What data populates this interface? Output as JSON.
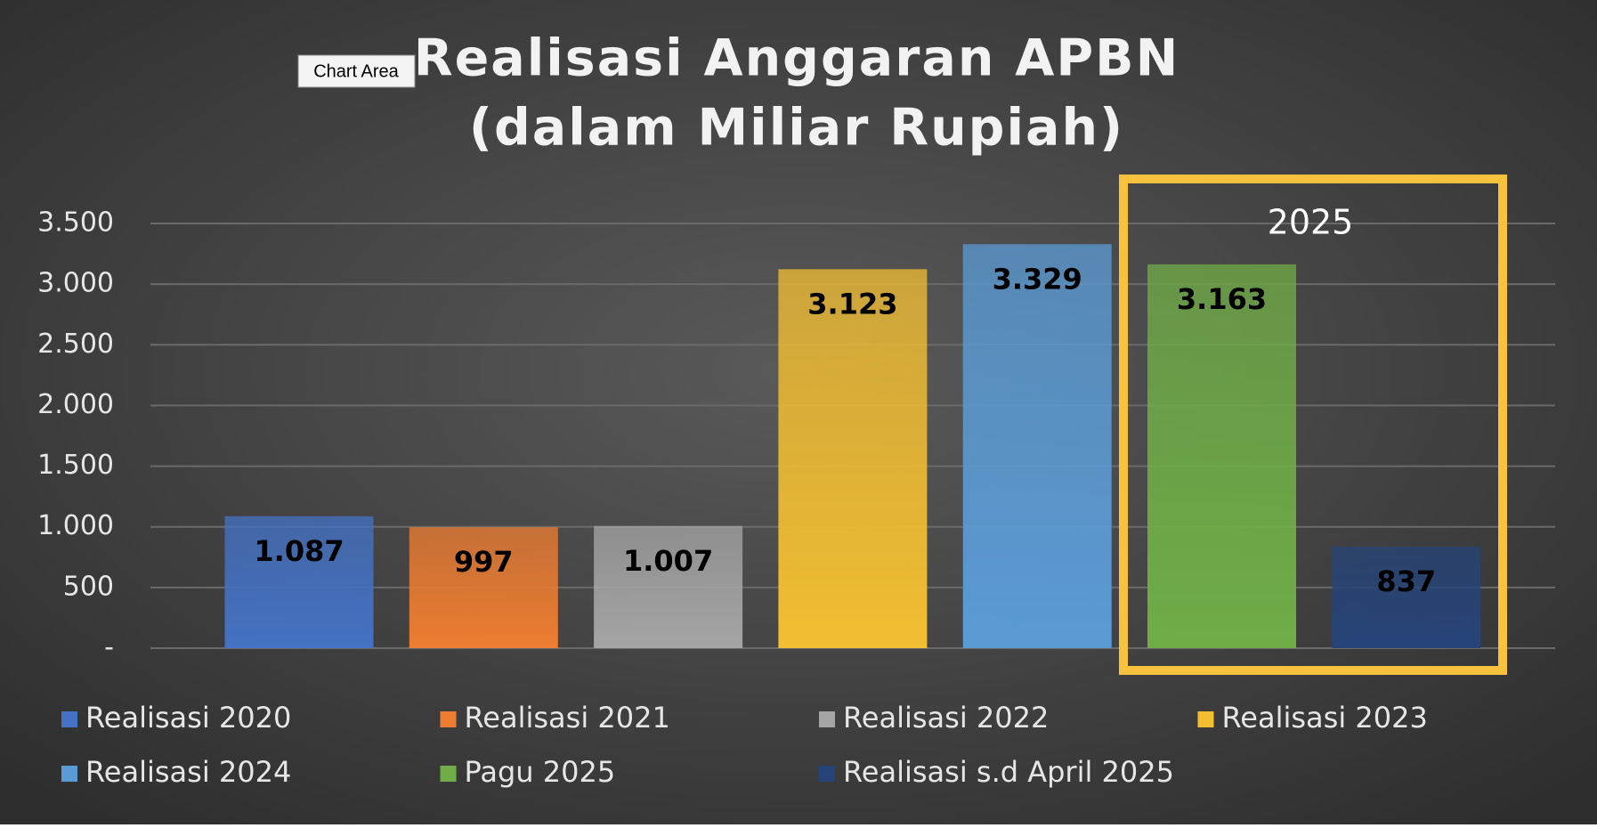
{
  "chart_data": {
    "type": "bar",
    "title": [
      "Realisasi Anggaran APBN",
      "(dalam Miliar Rupiah)"
    ],
    "tooltip": "Chart Area",
    "annotation": "2025",
    "series": [
      {
        "name": "Realisasi 2020",
        "color": "#4472c4",
        "values": [
          1087
        ],
        "value_labels": [
          "1.087"
        ]
      },
      {
        "name": "Realisasi 2021",
        "color": "#ed7d31",
        "values": [
          997
        ]
      },
      {
        "name": "Realisasi 2022",
        "color": "#a5a5a5",
        "values": [
          1007
        ],
        "value_labels": [
          "1.007"
        ]
      },
      {
        "name": "Realisasi 2023",
        "color": "#f2be32",
        "values": [
          3123
        ],
        "value_labels": [
          "3.123"
        ]
      },
      {
        "name": "Realisasi 2024",
        "color": "#5b9bd5",
        "values": [
          3329
        ],
        "value_labels": [
          "3.329"
        ]
      },
      {
        "name": "Pagu 2025",
        "color": "#70ad47",
        "values": [
          3163
        ],
        "value_labels": [
          "3.163"
        ]
      },
      {
        "name": "Realisasi s.d April 2025",
        "color": "#264478",
        "values": [
          837
        ]
      }
    ],
    "ylim": [
      0,
      3500
    ],
    "yticks": [
      {
        "value": 0,
        "label": "-"
      },
      500,
      {
        "value": 1000,
        "label": "1.000"
      },
      {
        "value": 1500,
        "label": "1.500"
      },
      {
        "value": 2000,
        "label": "2.000"
      },
      {
        "value": 2500,
        "label": "2.500"
      },
      {
        "value": 3000,
        "label": "3.000"
      },
      {
        "value": 3500,
        "label": "3.500"
      }
    ],
    "grid": true,
    "legend": "bottom",
    "highlight_color": "#f9c23c"
  }
}
